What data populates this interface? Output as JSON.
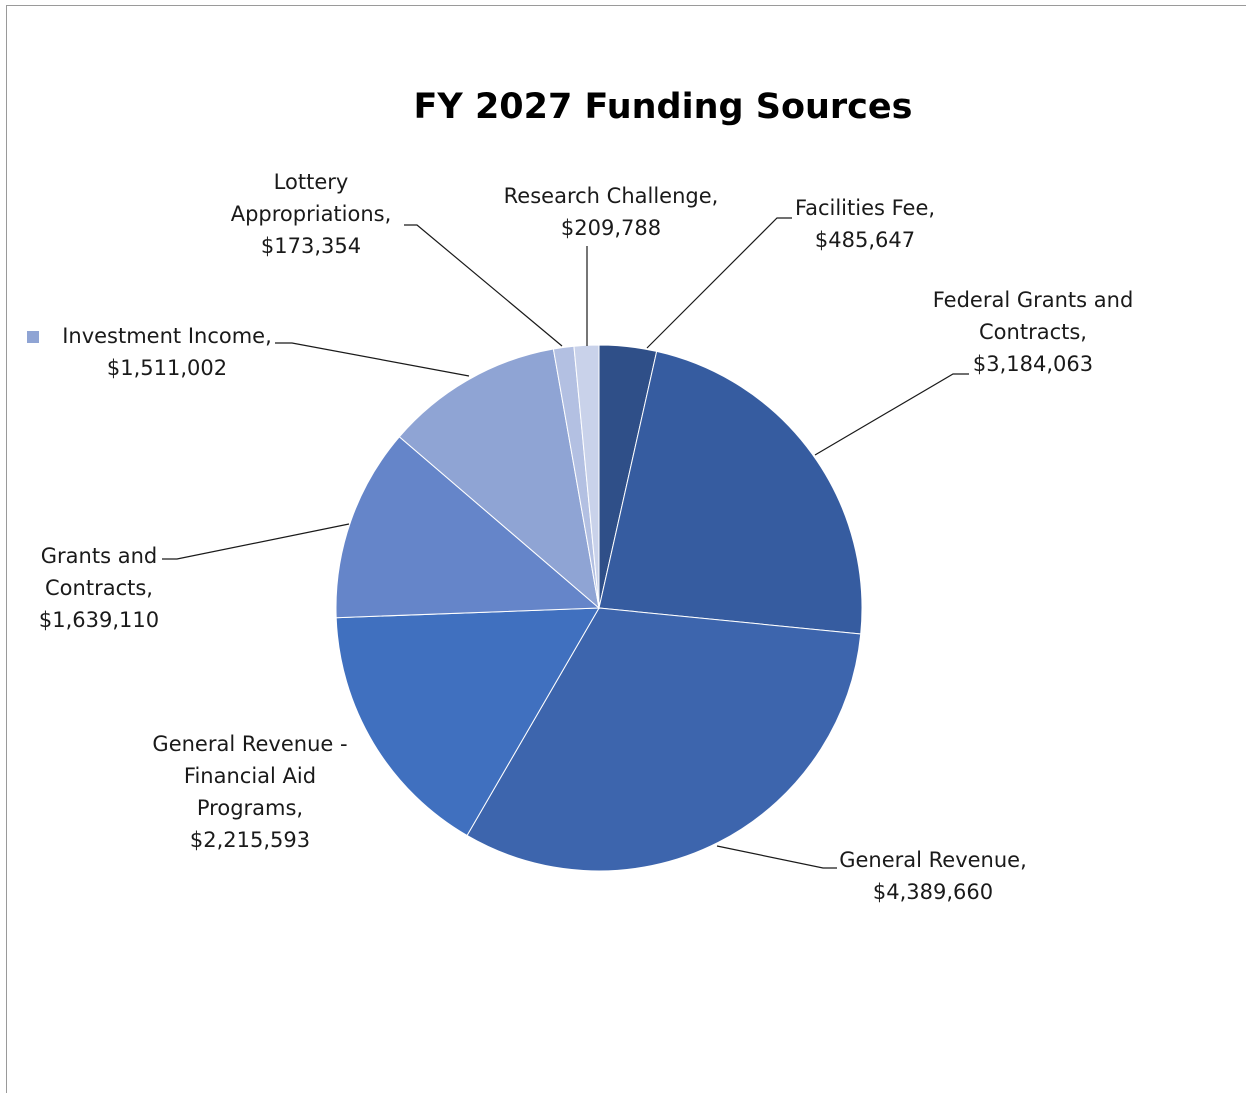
{
  "chart_data": {
    "type": "pie",
    "title": "FY 2027 Funding Sources",
    "start_angle_deg": 0,
    "direction": "clockwise",
    "legend_marker_on": "Investment Income",
    "slices": [
      {
        "label": "Facilities Fee",
        "value": 485647,
        "value_text": "$485,647",
        "color": "#2f4f88",
        "label_lines": [
          "Facilities Fee,",
          "$485,647"
        ]
      },
      {
        "label": "Federal Grants and Contracts",
        "value": 3184063,
        "value_text": "$3,184,063",
        "color": "#365ca0",
        "label_lines": [
          "Federal Grants and",
          "Contracts,",
          "$3,184,063"
        ]
      },
      {
        "label": "General Revenue",
        "value": 4389660,
        "value_text": "$4,389,660",
        "color": "#3d65ad",
        "label_lines": [
          "General Revenue,",
          "$4,389,660"
        ]
      },
      {
        "label": "General Revenue - Financial Aid Programs",
        "value": 2215593,
        "value_text": "$2,215,593",
        "color": "#4070bf",
        "label_lines": [
          "General Revenue -",
          "Financial Aid",
          "Programs,",
          "$2,215,593"
        ]
      },
      {
        "label": "Grants and Contracts",
        "value": 1639110,
        "value_text": "$1,639,110",
        "color": "#6585c9",
        "label_lines": [
          "Grants and",
          "Contracts,",
          "$1,639,110"
        ]
      },
      {
        "label": "Investment Income",
        "value": 1511002,
        "value_text": "$1,511,002",
        "color": "#8fa4d4",
        "label_lines": [
          "Investment Income,",
          "$1,511,002"
        ]
      },
      {
        "label": "Lottery Appropriations",
        "value": 173354,
        "value_text": "$173,354",
        "color": "#b3c0e2",
        "label_lines": [
          "Lottery",
          "Appropriations,",
          "$173,354"
        ]
      },
      {
        "label": "Research Challenge",
        "value": 209788,
        "value_text": "$209,788",
        "color": "#c9d2ea",
        "label_lines": [
          "Research Challenge,",
          "$209,788"
        ]
      }
    ]
  }
}
